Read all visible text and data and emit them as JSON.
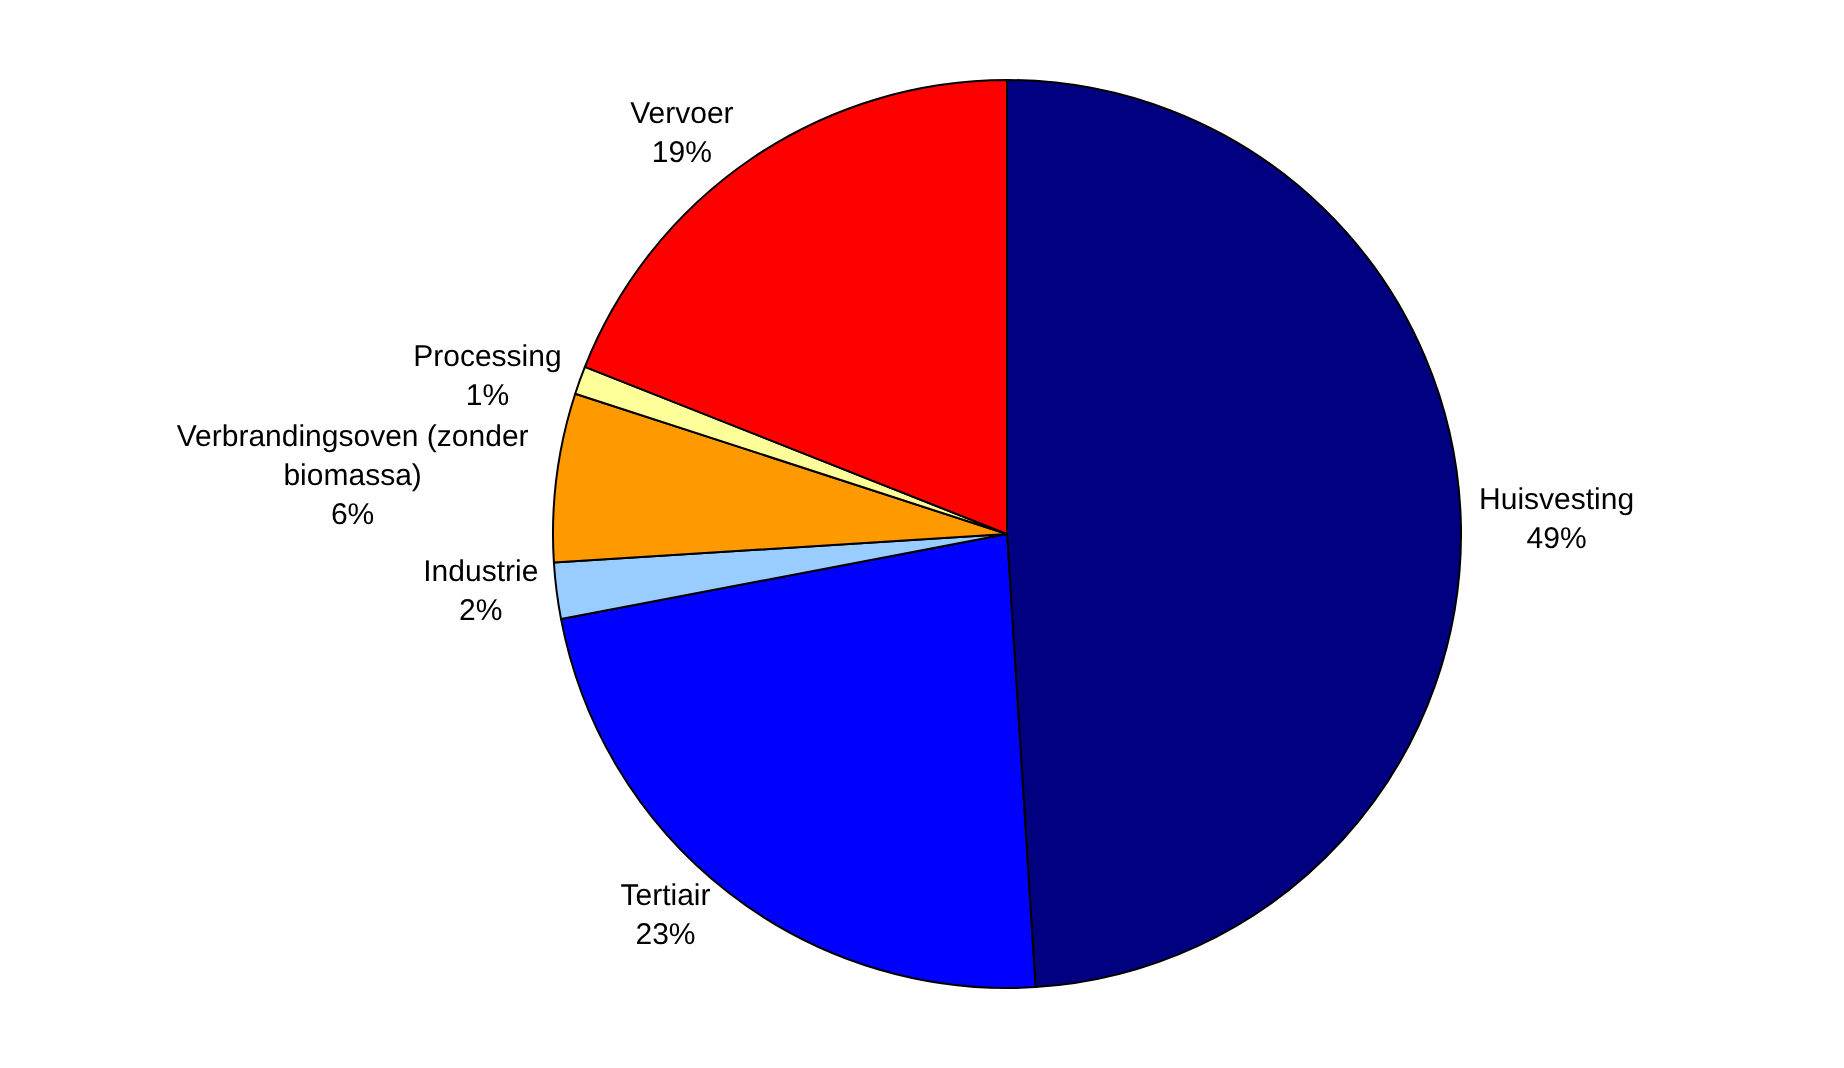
{
  "chart_data": {
    "type": "pie",
    "categories": [
      "Huisvesting",
      "Tertiair",
      "Industrie",
      "Verbrandingsoven (zonder biomassa)",
      "Processing",
      "Vervoer"
    ],
    "values": [
      49,
      23,
      2,
      6,
      1,
      19
    ],
    "value_labels": [
      "49%",
      "23%",
      "2%",
      "6%",
      "1%",
      "19%"
    ],
    "colors": [
      "#000080",
      "#0000ff",
      "#99ccff",
      "#ff9900",
      "#ffff99",
      "#ff0000"
    ],
    "legend": false
  }
}
